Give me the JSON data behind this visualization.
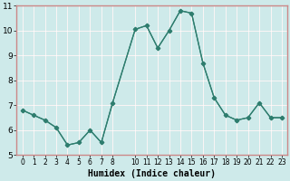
{
  "x": [
    0,
    1,
    2,
    3,
    4,
    5,
    6,
    7,
    8,
    10,
    11,
    12,
    13,
    14,
    15,
    16,
    17,
    18,
    19,
    20,
    21,
    22,
    23
  ],
  "y": [
    6.8,
    6.6,
    6.4,
    6.1,
    5.4,
    5.5,
    6.0,
    5.5,
    7.1,
    10.05,
    10.2,
    9.3,
    10.0,
    10.8,
    10.7,
    8.7,
    7.3,
    6.6,
    6.4,
    6.5,
    7.1,
    6.5,
    6.5
  ],
  "line_color": "#2e7d6e",
  "marker": "D",
  "marker_size": 2.5,
  "bg_color": "#ceeaea",
  "grid_color": "#ffffff",
  "xlabel": "Humidex (Indice chaleur)",
  "xlabel_fontsize": 7,
  "xlim": [
    -0.5,
    23.5
  ],
  "ylim": [
    5,
    11
  ],
  "yticks": [
    5,
    6,
    7,
    8,
    9,
    10,
    11
  ],
  "xticks": [
    0,
    1,
    2,
    3,
    4,
    5,
    6,
    7,
    8,
    10,
    11,
    12,
    13,
    14,
    15,
    16,
    17,
    18,
    19,
    20,
    21,
    22,
    23
  ],
  "tick_fontsize_x": 5.5,
  "tick_fontsize_y": 6.5
}
